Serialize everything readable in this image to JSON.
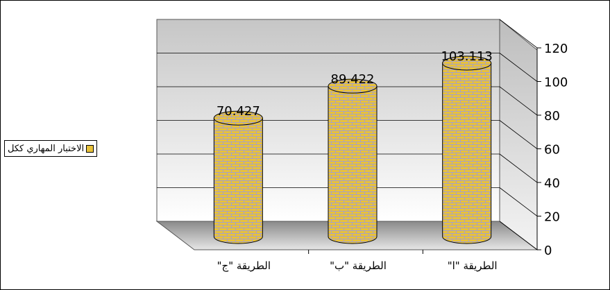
{
  "chart_data": {
    "type": "bar",
    "style": "3d-cylinder",
    "categories": [
      "الطريقة \"ج\"",
      "الطريقة \"ب\"",
      "الطريقة \"ا\""
    ],
    "series": [
      {
        "name": "الاختبار المهاري ككل",
        "values": [
          70.427,
          89.422,
          103.113
        ]
      }
    ],
    "data_labels": [
      "70.427",
      "89.422",
      "103.113"
    ],
    "y_ticks": [
      "0",
      "20",
      "40",
      "60",
      "80",
      "100",
      "120"
    ],
    "ylim": [
      0,
      120
    ],
    "grid": true,
    "legend_position": "left",
    "colors": {
      "bar_fill": "#e8c23a",
      "bar_pattern": "#a6a0c8",
      "wall_top": "#c8c8c8",
      "wall_bottom": "#ffffff"
    }
  }
}
